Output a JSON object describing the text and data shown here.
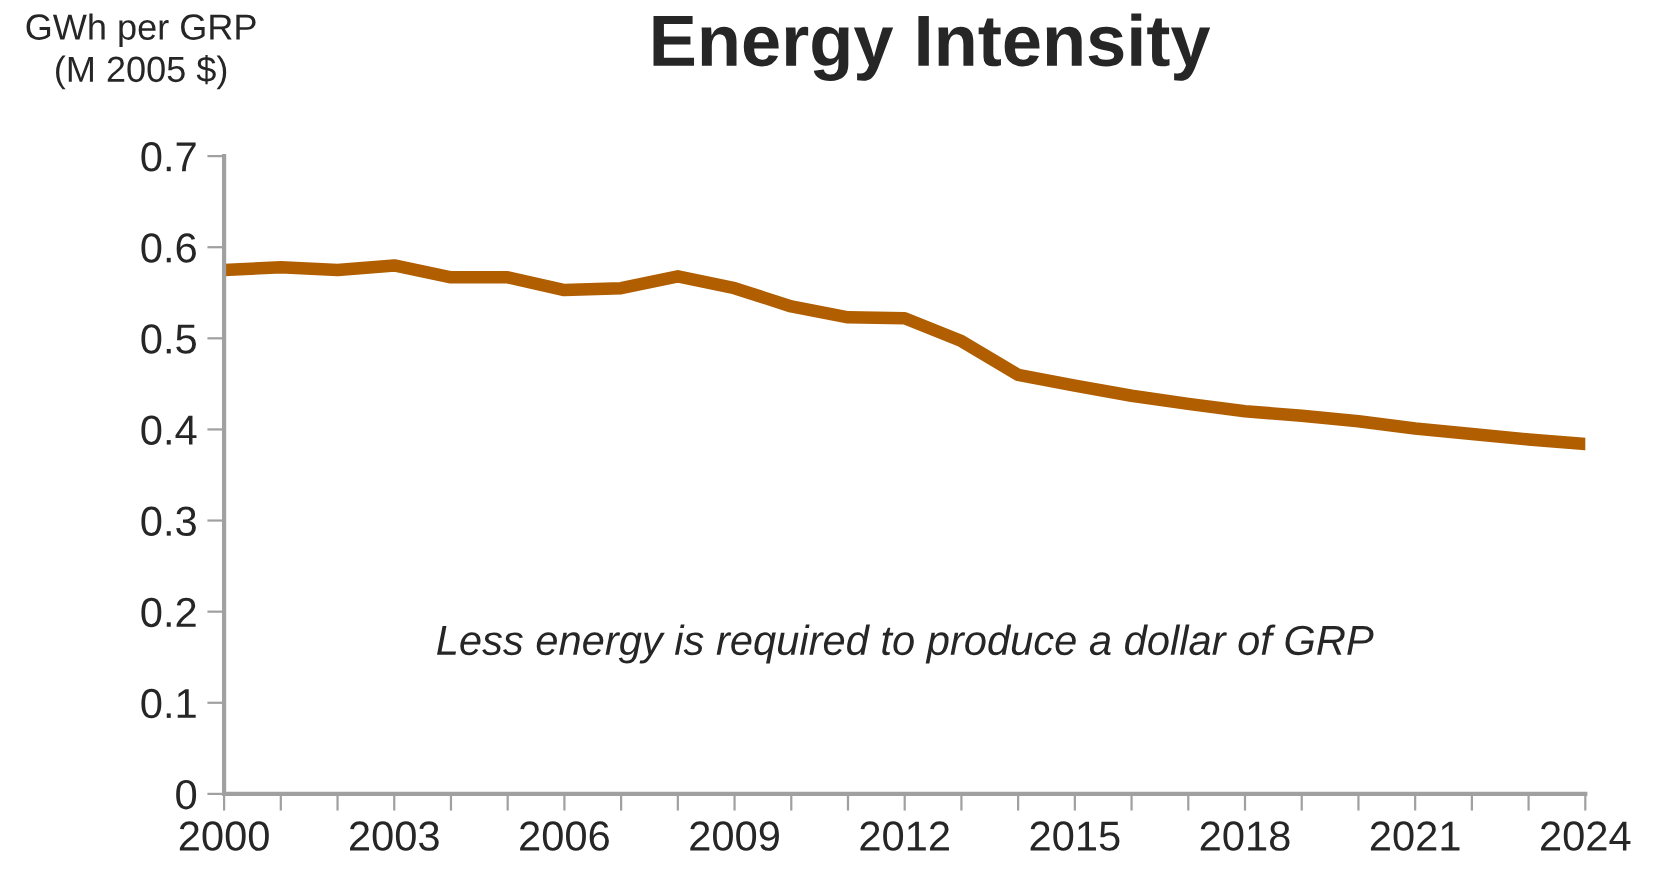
{
  "chart_data": {
    "type": "line",
    "title": "Energy Intensity",
    "ylabel": "GWh per GRP\n(M 2005 $)",
    "annotations": [
      "Less energy is required to produce a dollar of GRP"
    ],
    "x": [
      2000,
      2001,
      2002,
      2003,
      2004,
      2005,
      2006,
      2007,
      2008,
      2009,
      2010,
      2011,
      2012,
      2013,
      2014,
      2015,
      2016,
      2017,
      2018,
      2019,
      2020,
      2021,
      2022,
      2023,
      2024
    ],
    "series": [
      {
        "color": "#b05e00",
        "values": [
          0.575,
          0.578,
          0.575,
          0.58,
          0.567,
          0.567,
          0.553,
          0.555,
          0.568,
          0.555,
          0.535,
          0.523,
          0.522,
          0.497,
          0.46,
          0.448,
          0.437,
          0.428,
          0.42,
          0.415,
          0.409,
          0.401,
          0.395,
          0.389,
          0.384
        ]
      }
    ],
    "xlim": [
      2000,
      2024
    ],
    "xticks": [
      2000,
      {
        "value": 2001,
        "label": null
      },
      {
        "value": 2002,
        "label": null
      },
      2003,
      {
        "value": 2004,
        "label": null
      },
      {
        "value": 2005,
        "label": null
      },
      2006,
      {
        "value": 2007,
        "label": null
      },
      {
        "value": 2008,
        "label": null
      },
      2009,
      {
        "value": 2010,
        "label": null
      },
      {
        "value": 2011,
        "label": null
      },
      2012,
      {
        "value": 2013,
        "label": null
      },
      {
        "value": 2014,
        "label": null
      },
      2015,
      {
        "value": 2016,
        "label": null
      },
      {
        "value": 2017,
        "label": null
      },
      2018,
      {
        "value": 2019,
        "label": null
      },
      {
        "value": 2020,
        "label": null
      },
      2021,
      {
        "value": 2022,
        "label": null
      },
      {
        "value": 2023,
        "label": null
      },
      2024
    ],
    "ylim": [
      0,
      0.7
    ],
    "yticks": [
      0,
      0.1,
      0.2,
      0.3,
      0.4,
      0.5,
      0.6,
      0.7
    ],
    "grid": false,
    "marker": "none",
    "line_style": "solid"
  }
}
